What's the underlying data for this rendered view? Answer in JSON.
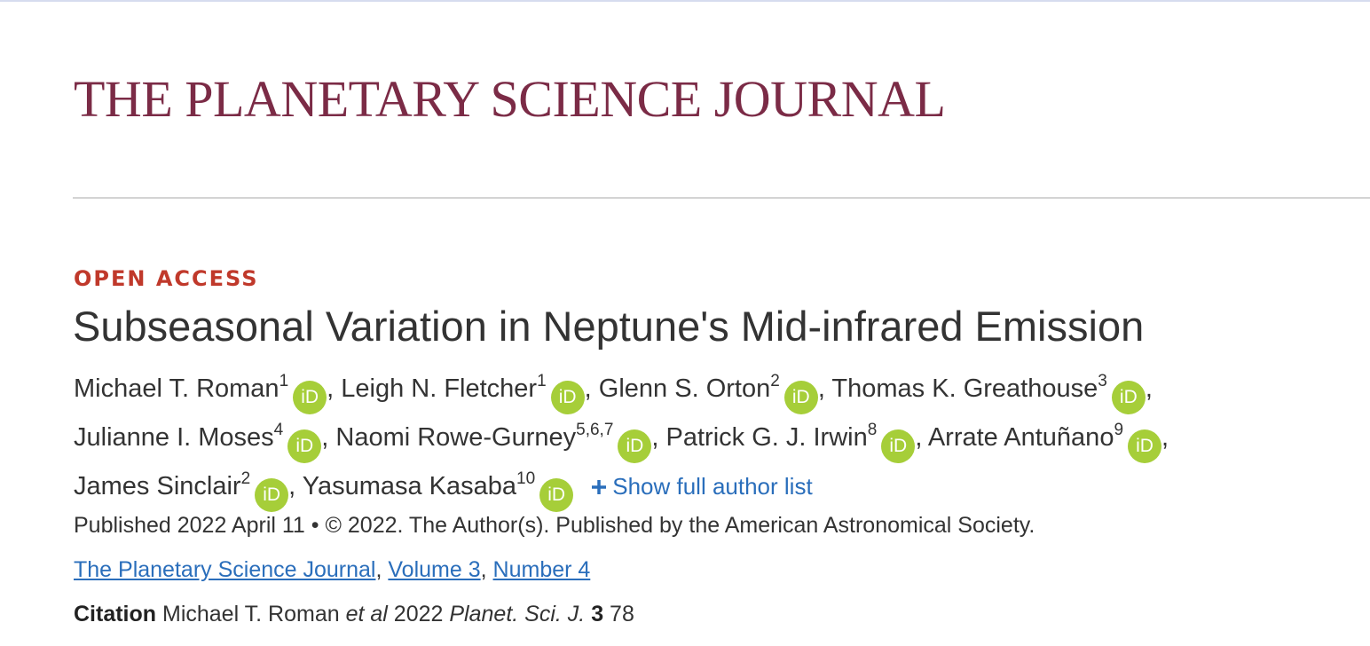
{
  "header": {
    "journal_name": "THE PLANETARY SCIENCE JOURNAL"
  },
  "article": {
    "access": "OPEN ACCESS",
    "title": "Subseasonal Variation in Neptune's Mid-infrared Emission",
    "orcid_label": "iD",
    "author_separator": ",",
    "authors": [
      {
        "name": "Michael T. Roman",
        "affiliations": "1"
      },
      {
        "name": "Leigh N. Fletcher",
        "affiliations": "1"
      },
      {
        "name": "Glenn S. Orton",
        "affiliations": "2"
      },
      {
        "name": "Thomas K. Greathouse",
        "affiliations": "3"
      },
      {
        "name": "Julianne I. Moses",
        "affiliations": "4"
      },
      {
        "name": "Naomi Rowe-Gurney",
        "affiliations": "5,6,7"
      },
      {
        "name": "Patrick G. J. Irwin",
        "affiliations": "8"
      },
      {
        "name": "Arrate Antuñano",
        "affiliations": "9"
      },
      {
        "name": "James Sinclair",
        "affiliations": "2"
      },
      {
        "name": "Yasumasa Kasaba",
        "affiliations": "10"
      }
    ],
    "show_authors": "Show full author list",
    "published": "Published 2022 April 11",
    "bullet": "•",
    "copyright": "© 2022. The Author(s). Published by the American Astronomical Society.",
    "links": [
      "The Planetary Science Journal",
      "Volume 3",
      "Number 4"
    ],
    "link_separator": ",",
    "citation": {
      "label": "Citation",
      "authors": "Michael T. Roman",
      "et_al": "et al",
      "year": "2022",
      "journal": "Planet. Sci. J.",
      "volume": "3",
      "article": "78"
    }
  }
}
